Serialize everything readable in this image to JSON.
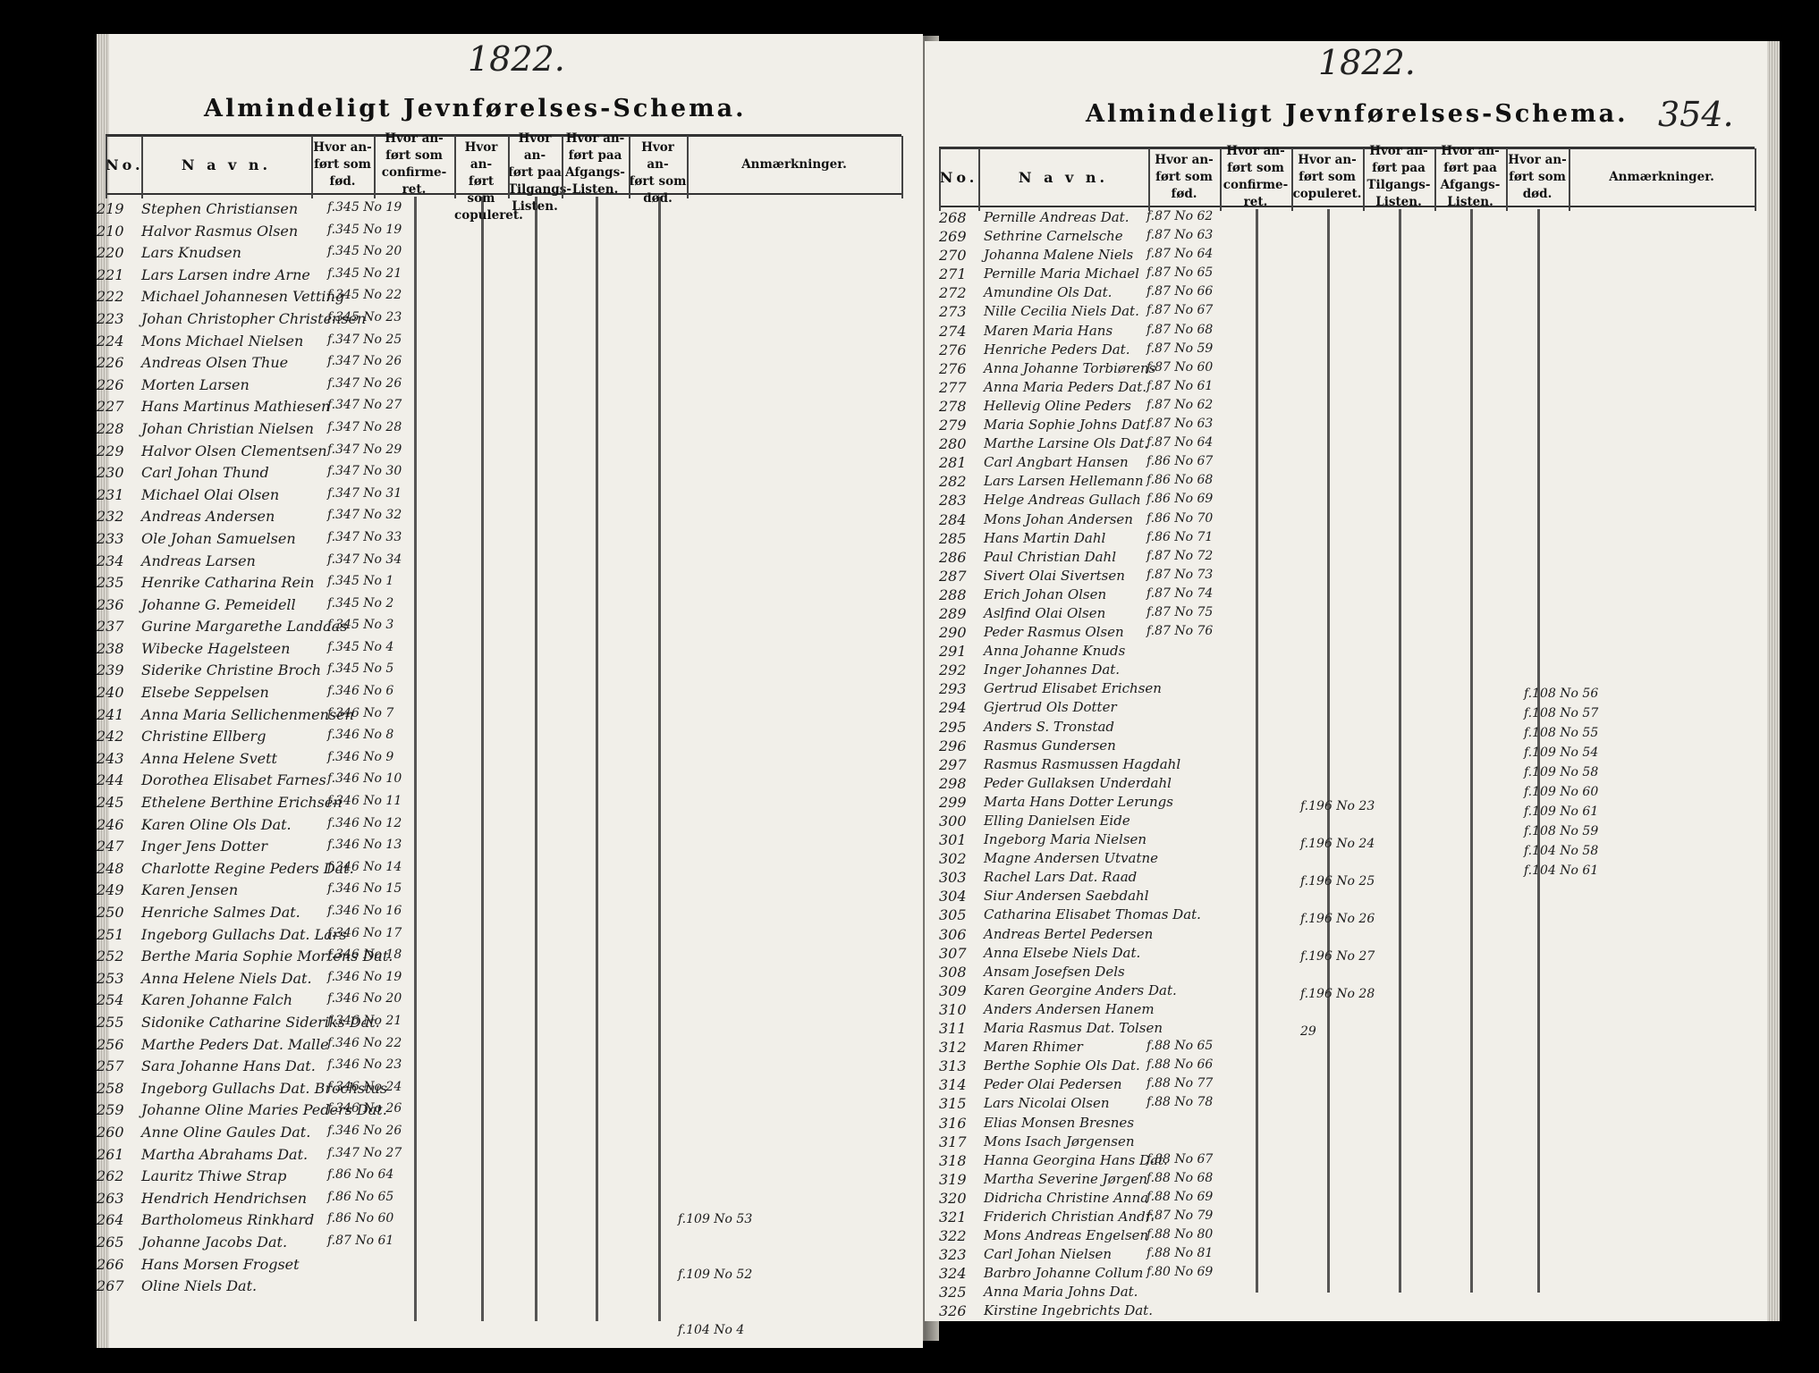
{
  "left_page": {
    "year": "1822.",
    "title": "Almindeligt Jevnførelses-Schema.",
    "columns": [
      "No.",
      "N a v n.",
      "Hvor an-\nført som\nfød.",
      "Hvor an-\nført som\nconfirme-\nret.",
      "Hvor an-\nført som\ncopuleret.",
      "Hvor an-\nført paa\nTilgangs-\nListen.",
      "Hvor an-\nført paa\nAfgangs-\nListen.",
      "Hvor an-\nført som\ndød.",
      "Anmærkninger."
    ],
    "rows": [
      {
        "no": "219",
        "name": "Stephen Christiansen",
        "ref": "f.345 No 19"
      },
      {
        "no": "210",
        "name": "Halvor Rasmus Olsen",
        "ref": "f.345 No 19"
      },
      {
        "no": "220",
        "name": "Lars Knudsen",
        "ref": "f.345 No 20"
      },
      {
        "no": "221",
        "name": "Lars Larsen indre Arne",
        "ref": "f.345 No 21"
      },
      {
        "no": "222",
        "name": "Michael Johannesen Vetting",
        "ref": "f.345 No 22"
      },
      {
        "no": "223",
        "name": "Johan Christopher Christensen",
        "ref": "f.345 No 23"
      },
      {
        "no": "224",
        "name": "Mons Michael Nielsen",
        "ref": "f.347 No 25"
      },
      {
        "no": "226",
        "name": "Andreas Olsen Thue",
        "ref": "f.347 No 26"
      },
      {
        "no": "226",
        "name": "Morten Larsen",
        "ref": "f.347 No 26"
      },
      {
        "no": "227",
        "name": "Hans Martinus Mathiesen",
        "ref": "f.347 No 27"
      },
      {
        "no": "228",
        "name": "Johan Christian Nielsen",
        "ref": "f.347 No 28"
      },
      {
        "no": "229",
        "name": "Halvor Olsen Clementsen",
        "ref": "f.347 No 29"
      },
      {
        "no": "230",
        "name": "Carl Johan Thund",
        "ref": "f.347 No 30"
      },
      {
        "no": "231",
        "name": "Michael Olai Olsen",
        "ref": "f.347 No 31"
      },
      {
        "no": "232",
        "name": "Andreas Andersen",
        "ref": "f.347 No 32"
      },
      {
        "no": "233",
        "name": "Ole Johan Samuelsen",
        "ref": "f.347 No 33"
      },
      {
        "no": "234",
        "name": "Andreas Larsen",
        "ref": "f.347 No 34"
      },
      {
        "no": "235",
        "name": "Henrike Catharina Rein",
        "ref": "f.345 No 1"
      },
      {
        "no": "236",
        "name": "Johanne G. Pemeidell",
        "ref": "f.345 No 2"
      },
      {
        "no": "237",
        "name": "Gurine Margarethe Landaas",
        "ref": "f.345 No 3"
      },
      {
        "no": "238",
        "name": "Wibecke Hagelsteen",
        "ref": "f.345 No 4"
      },
      {
        "no": "239",
        "name": "Siderike Christine Broch",
        "ref": "f.345 No 5"
      },
      {
        "no": "240",
        "name": "Elsebe Seppelsen",
        "ref": "f.346 No 6"
      },
      {
        "no": "241",
        "name": "Anna Maria Sellichenmensen",
        "ref": "f.346 No 7"
      },
      {
        "no": "242",
        "name": "Christine Ellberg",
        "ref": "f.346 No 8"
      },
      {
        "no": "243",
        "name": "Anna Helene Svett",
        "ref": "f.346 No 9"
      },
      {
        "no": "244",
        "name": "Dorothea Elisabet Farnes",
        "ref": "f.346 No 10"
      },
      {
        "no": "245",
        "name": "Ethelene Berthine Erichsen",
        "ref": "f.346 No 11"
      },
      {
        "no": "246",
        "name": "Karen Oline Ols Dat.",
        "ref": "f.346 No 12"
      },
      {
        "no": "247",
        "name": "Inger Jens Dotter",
        "ref": "f.346 No 13"
      },
      {
        "no": "248",
        "name": "Charlotte Regine Peders Dat.",
        "ref": "f.346 No 14"
      },
      {
        "no": "249",
        "name": "Karen Jensen",
        "ref": "f.346 No 15"
      },
      {
        "no": "250",
        "name": "Henriche Salmes Dat.",
        "ref": "f.346 No 16"
      },
      {
        "no": "251",
        "name": "Ingeborg Gullachs Dat. Lars",
        "ref": "f.346 No 17"
      },
      {
        "no": "252",
        "name": "Berthe Maria Sophie Mortens Dat.",
        "ref": "f.346 No 18"
      },
      {
        "no": "253",
        "name": "Anna Helene Niels Dat.",
        "ref": "f.346 No 19"
      },
      {
        "no": "254",
        "name": "Karen Johanne Falch",
        "ref": "f.346 No 20"
      },
      {
        "no": "255",
        "name": "Sidonike Catharine Sideriks Dat.",
        "ref": "f.346 No 21"
      },
      {
        "no": "256",
        "name": "Marthe Peders Dat. Malle",
        "ref": "f.346 No 22"
      },
      {
        "no": "257",
        "name": "Sara Johanne Hans Dat.",
        "ref": "f.346 No 23"
      },
      {
        "no": "258",
        "name": "Ingeborg Gullachs Dat. Brochstus",
        "ref": "f.346 No 24"
      },
      {
        "no": "259",
        "name": "Johanne Oline Maries Peders Dat.",
        "ref": "f.346 No 26"
      },
      {
        "no": "260",
        "name": "Anne Oline Gaules Dat.",
        "ref": "f.346 No 26"
      },
      {
        "no": "261",
        "name": "Martha Abrahams Dat.",
        "ref": "f.347 No 27"
      },
      {
        "no": "262",
        "name": "Lauritz Thiwe Strap",
        "ref": "f.86 No 64"
      },
      {
        "no": "263",
        "name": "Hendrich Hendrichsen",
        "ref": "f.86 No 65"
      },
      {
        "no": "264",
        "name": "Bartholomeus Rinkhard",
        "ref": "f.86 No 60"
      },
      {
        "no": "265",
        "name": "Johanne Jacobs Dat.",
        "ref": "f.87 No 61"
      },
      {
        "no": "266",
        "name": "Hans Morsen Frogset",
        "ref": ""
      },
      {
        "no": "267",
        "name": "Oline Niels Dat.",
        "ref": ""
      }
    ],
    "afgang_notes": [
      "f.109 No 53",
      "f.109 No 52",
      "f.104 No 4"
    ]
  },
  "right_page": {
    "year": "1822.",
    "title": "Almindeligt Jevnførelses-Schema.",
    "page_number": "354.",
    "columns": [
      "No.",
      "N a v n.",
      "Hvor an-\nført som\nfød.",
      "Hvor an-\nført som\nconfirme-\nret.",
      "Hvor an-\nført som\ncopuleret.",
      "Hvor an-\nført paa\nTilgangs-\nListen.",
      "Hvor an-\nført paa\nAfgangs-\nListen.",
      "Hvor an-\nført som\ndød.",
      "Anmærkninger."
    ],
    "rows": [
      {
        "no": "268",
        "name": "Pernille Andreas Dat.",
        "ref": "f.87 No 62"
      },
      {
        "no": "269",
        "name": "Sethrine Carnelsche",
        "ref": "f.87 No 63"
      },
      {
        "no": "270",
        "name": "Johanna Malene Niels",
        "ref": "f.87 No 64"
      },
      {
        "no": "271",
        "name": "Pernille Maria Michael",
        "ref": "f.87 No 65"
      },
      {
        "no": "272",
        "name": "Amundine Ols Dat.",
        "ref": "f.87 No 66"
      },
      {
        "no": "273",
        "name": "Nille Cecilia Niels Dat.",
        "ref": "f.87 No 67"
      },
      {
        "no": "274",
        "name": "Maren Maria Hans",
        "ref": "f.87 No 68"
      },
      {
        "no": "276",
        "name": "Henriche Peders Dat.",
        "ref": "f.87 No 59"
      },
      {
        "no": "276",
        "name": "Anna Johanne Torbiørens",
        "ref": "f.87 No 60"
      },
      {
        "no": "277",
        "name": "Anna Maria Peders Dat.",
        "ref": "f.87 No 61"
      },
      {
        "no": "278",
        "name": "Hellevig Oline Peders",
        "ref": "f.87 No 62"
      },
      {
        "no": "279",
        "name": "Maria Sophie Johns Dat.",
        "ref": "f.87 No 63"
      },
      {
        "no": "280",
        "name": "Marthe Larsine Ols Dat.",
        "ref": "f.87 No 64"
      },
      {
        "no": "281",
        "name": "Carl Angbart Hansen",
        "ref": "f.86 No 67"
      },
      {
        "no": "282",
        "name": "Lars Larsen Hellemann",
        "ref": "f.86 No 68"
      },
      {
        "no": "283",
        "name": "Helge Andreas Gullach",
        "ref": "f.86 No 69"
      },
      {
        "no": "284",
        "name": "Mons Johan Andersen",
        "ref": "f.86 No 70"
      },
      {
        "no": "285",
        "name": "Hans Martin Dahl",
        "ref": "f.86 No 71"
      },
      {
        "no": "286",
        "name": "Paul Christian Dahl",
        "ref": "f.87 No 72"
      },
      {
        "no": "287",
        "name": "Sivert Olai Sivertsen",
        "ref": "f.87 No 73"
      },
      {
        "no": "288",
        "name": "Erich Johan Olsen",
        "ref": "f.87 No 74"
      },
      {
        "no": "289",
        "name": "Aslfind Olai Olsen",
        "ref": "f.87 No 75"
      },
      {
        "no": "290",
        "name": "Peder Rasmus Olsen",
        "ref": "f.87 No 76"
      },
      {
        "no": "291",
        "name": "Anna Johanne Knuds",
        "ref": ""
      },
      {
        "no": "292",
        "name": "Inger Johannes Dat.",
        "ref": ""
      },
      {
        "no": "293",
        "name": "Gertrud Elisabet Erichsen",
        "ref": ""
      },
      {
        "no": "294",
        "name": "Gjertrud Ols Dotter",
        "ref": ""
      },
      {
        "no": "295",
        "name": "Anders S. Tronstad",
        "ref": ""
      },
      {
        "no": "296",
        "name": "Rasmus Gundersen",
        "ref": ""
      },
      {
        "no": "297",
        "name": "Rasmus Rasmussen Hagdahl",
        "ref": ""
      },
      {
        "no": "298",
        "name": "Peder Gullaksen Underdahl",
        "ref": ""
      },
      {
        "no": "299",
        "name": "Marta Hans Dotter Lerungs",
        "ref": ""
      },
      {
        "no": "300",
        "name": "Elling Danielsen Eide",
        "ref": ""
      },
      {
        "no": "301",
        "name": "Ingeborg Maria Nielsen",
        "ref": ""
      },
      {
        "no": "302",
        "name": "Magne Andersen Utvatne",
        "ref": ""
      },
      {
        "no": "303",
        "name": "Rachel Lars Dat. Raad",
        "ref": ""
      },
      {
        "no": "304",
        "name": "Siur Andersen Saebdahl",
        "ref": ""
      },
      {
        "no": "305",
        "name": "Catharina Elisabet Thomas Dat.",
        "ref": ""
      },
      {
        "no": "306",
        "name": "Andreas Bertel Pedersen",
        "ref": ""
      },
      {
        "no": "307",
        "name": "Anna Elsebe Niels Dat.",
        "ref": ""
      },
      {
        "no": "308",
        "name": "Ansam Josefsen Dels",
        "ref": ""
      },
      {
        "no": "309",
        "name": "Karen Georgine Anders Dat.",
        "ref": ""
      },
      {
        "no": "310",
        "name": "Anders Andersen Hanem",
        "ref": ""
      },
      {
        "no": "311",
        "name": "Maria Rasmus Dat. Tolsen",
        "ref": ""
      },
      {
        "no": "312",
        "name": "Maren Rhimer",
        "ref": "f.88 No 65"
      },
      {
        "no": "313",
        "name": "Berthe Sophie Ols Dat.",
        "ref": "f.88 No 66"
      },
      {
        "no": "314",
        "name": "Peder Olai Pedersen",
        "ref": "f.88 No 77"
      },
      {
        "no": "315",
        "name": "Lars Nicolai Olsen",
        "ref": "f.88 No 78"
      },
      {
        "no": "316",
        "name": "Elias Monsen Bresnes",
        "ref": ""
      },
      {
        "no": "317",
        "name": "Mons Isach Jørgensen",
        "ref": ""
      },
      {
        "no": "318",
        "name": "Hanna Georgina Hans Dat.",
        "ref": "f.88 No 67"
      },
      {
        "no": "319",
        "name": "Martha Severine Jørgen",
        "ref": "f.88 No 68"
      },
      {
        "no": "320",
        "name": "Didricha Christine Anna",
        "ref": "f.88 No 69"
      },
      {
        "no": "321",
        "name": "Friderich Christian Andr.",
        "ref": "f.87 No 79"
      },
      {
        "no": "322",
        "name": "Mons Andreas Engelsen",
        "ref": "f.88 No 80"
      },
      {
        "no": "323",
        "name": "Carl Johan Nielsen",
        "ref": "f.88 No 81"
      },
      {
        "no": "324",
        "name": "Barbro Johanne Collum",
        "ref": "f.80 No 69"
      },
      {
        "no": "325",
        "name": "Anna Maria Johns Dat.",
        "ref": ""
      },
      {
        "no": "326",
        "name": "Kirstine Ingebrichts Dat.",
        "ref": ""
      }
    ],
    "tilgang_notes": [
      "f.196 No 23",
      "f.196 No 24",
      "f.196 No 25",
      "f.196 No 26",
      "f.196 No 27",
      "f.196 No 28",
      "29"
    ],
    "dod_notes": [
      "f.108 No 56",
      "f.108 No 57",
      "f.108 No 55",
      "f.109 No 54",
      "f.109 No 58",
      "f.109 No 60",
      "f.109 No 61",
      "f.108 No 59",
      "f.104 No 58",
      "f.104 No 61"
    ]
  }
}
